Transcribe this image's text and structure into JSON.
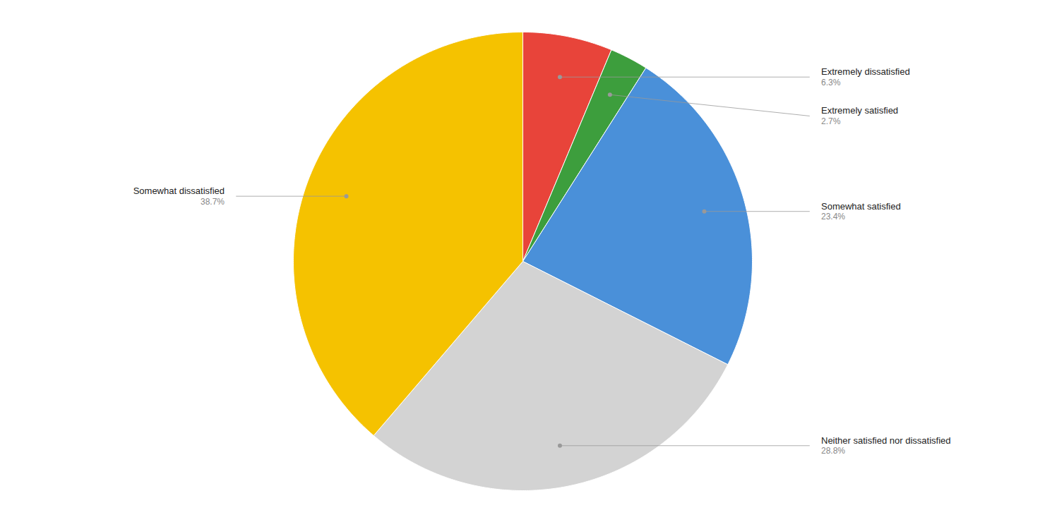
{
  "chart_data": {
    "type": "pie",
    "categories": [
      "Extremely dissatisfied",
      "Extremely satisfied",
      "Somewhat satisfied",
      "Neither satisfied nor dissatisfied",
      "Somewhat dissatisfied"
    ],
    "values": [
      6.3,
      2.7,
      23.4,
      28.8,
      38.7
    ],
    "value_labels": [
      "6.3%",
      "2.7%",
      "23.4%",
      "28.8%",
      "38.7%"
    ],
    "colors": [
      "#e8443a",
      "#3d9e3d",
      "#4a90d9",
      "#d3d3d3",
      "#f5c200"
    ],
    "data_labels": true
  }
}
